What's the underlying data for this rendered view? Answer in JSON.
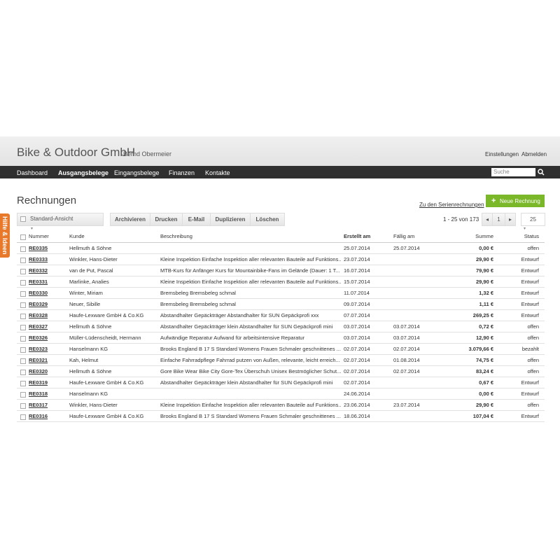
{
  "header": {
    "title": "Bike & Outdoor GmbH",
    "user": "Bernd Obermeier",
    "links": [
      "Einstellungen",
      "Abmelden"
    ]
  },
  "nav": {
    "items": [
      "Dashboard",
      "Ausgangsbelege",
      "Eingangsbelege",
      "Finanzen",
      "Kontakte"
    ],
    "search": "Suche"
  },
  "side_tab": "Hilfe & Ideen",
  "page": {
    "title": "Rechnungen",
    "serien_link": "Zu den Serienrechnungen",
    "new_button": "Neue Rechnung"
  },
  "toolbar": {
    "view": "Standard-Ansicht",
    "actions": [
      "Archivieren",
      "Drucken",
      "E-Mail",
      "Duplizieren",
      "Löschen"
    ],
    "pagination": "1 - 25 von 173",
    "page": "1",
    "per_page": "25"
  },
  "table": {
    "columns": [
      "Nummer",
      "Kunde",
      "Beschreibung",
      "Erstellt am",
      "Fällig am",
      "Summe",
      "Status"
    ],
    "rows": [
      {
        "number": "RE0335",
        "customer": "Hellmuth & Söhne",
        "created": "25.07.2014",
        "due": "25.07.2014",
        "sum": "0,00 €",
        "status": "offen"
      },
      {
        "number": "RE0333",
        "customer": "Winkler, Hans-Dieter",
        "description": "Kleine Inspektion Einfache Inspektion aller relevanten Bauteile auf Funktions...",
        "created": "23.07.2014",
        "sum": "29,90 €",
        "status": "Entwurf"
      },
      {
        "number": "RE0332",
        "customer": "van de Put, Pascal",
        "description": "MTB-Kurs für Anfänger Kurs für Mountainbike-Fans im Gelände (Dauer: 1 T...",
        "created": "16.07.2014",
        "sum": "79,90 €",
        "status": "Entwurf"
      },
      {
        "number": "RE0331",
        "customer": "Marlinke, Analies",
        "description": "Kleine Inspektion Einfache Inspektion aller relevanten Bauteile auf Funktions...",
        "created": "15.07.2014",
        "sum": "29,90 €",
        "status": "Entwurf"
      },
      {
        "number": "RE0330",
        "customer": "Winter, Miriam",
        "description": "Bremsbeleg Bremsbeleg schmal",
        "created": "11.07.2014",
        "sum": "1,32 €",
        "status": "Entwurf"
      },
      {
        "number": "RE0329",
        "customer": "Neuer, Sibille",
        "description": "Bremsbeleg Bremsbeleg schmal",
        "created": "09.07.2014",
        "sum": "1,11 €",
        "status": "Entwurf"
      },
      {
        "number": "RE0328",
        "customer": "Haufe-Lexware GmbH & Co.KG",
        "description": "Abstandhalter Gepäckträger Abstandhalter für SUN Gepäckprofi xxx",
        "created": "07.07.2014",
        "sum": "269,25 €",
        "status": "Entwurf"
      },
      {
        "number": "RE0327",
        "customer": "Hellmuth & Söhne",
        "description": "Abstandhalter Gepäckträger klein Abstandhalter für SUN Gepäckprofi mini",
        "created": "03.07.2014",
        "due": "03.07.2014",
        "sum": "0,72 €",
        "status": "offen"
      },
      {
        "number": "RE0326",
        "customer": "Müller-Lüdenscheidt, Hermann",
        "description": "Aufwändige Reparatur Aufwand für arbeitsintensive Reparatur",
        "created": "03.07.2014",
        "due": "03.07.2014",
        "sum": "12,90 €",
        "status": "offen"
      },
      {
        "number": "RE0323",
        "customer": "Hanselmann KG",
        "description": "Brooks England B 17 S Standard Womens Frauen Schmaler geschnittenes ...",
        "created": "02.07.2014",
        "due": "02.07.2014",
        "sum": "3.079,66 €",
        "status": "bezahlt"
      },
      {
        "number": "RE0321",
        "customer": "Kah, Helmut",
        "description": "Einfache Fahrradpflege Fahrrad putzen von Außen, relevante, leicht erreich...",
        "created": "02.07.2014",
        "due": "01.08.2014",
        "sum": "74,75 €",
        "status": "offen"
      },
      {
        "number": "RE0320",
        "customer": "Hellmuth & Söhne",
        "description": "Gore Bike Wear Bike City Gore-Tex Überschuh Unisex Bestmöglicher Schut...",
        "created": "02.07.2014",
        "due": "02.07.2014",
        "sum": "83,24 €",
        "status": "offen"
      },
      {
        "number": "RE0319",
        "customer": "Haufe-Lexware GmbH & Co.KG",
        "description": "Abstandhalter Gepäckträger klein Abstandhalter für SUN Gepäckprofi mini",
        "created": "02.07.2014",
        "sum": "0,67 €",
        "status": "Entwurf"
      },
      {
        "number": "RE0318",
        "customer": "Hanselmann KG",
        "created": "24.06.2014",
        "sum": "0,00 €",
        "status": "Entwurf"
      },
      {
        "number": "RE0317",
        "customer": "Winkler, Hans-Dieter",
        "description": "Kleine Inspektion Einfache Inspektion aller relevanten Bauteile auf Funktions...",
        "created": "23.06.2014",
        "due": "23.07.2014",
        "sum": "29,90 €",
        "status": "offen"
      },
      {
        "number": "RE0316",
        "customer": "Haufe-Lexware GmbH & Co.KG",
        "description": "Brooks England B 17 S Standard Womens Frauen Schmaler geschnittenes ...",
        "created": "18.06.2014",
        "sum": "107,04 €",
        "status": "Entwurf"
      }
    ]
  }
}
